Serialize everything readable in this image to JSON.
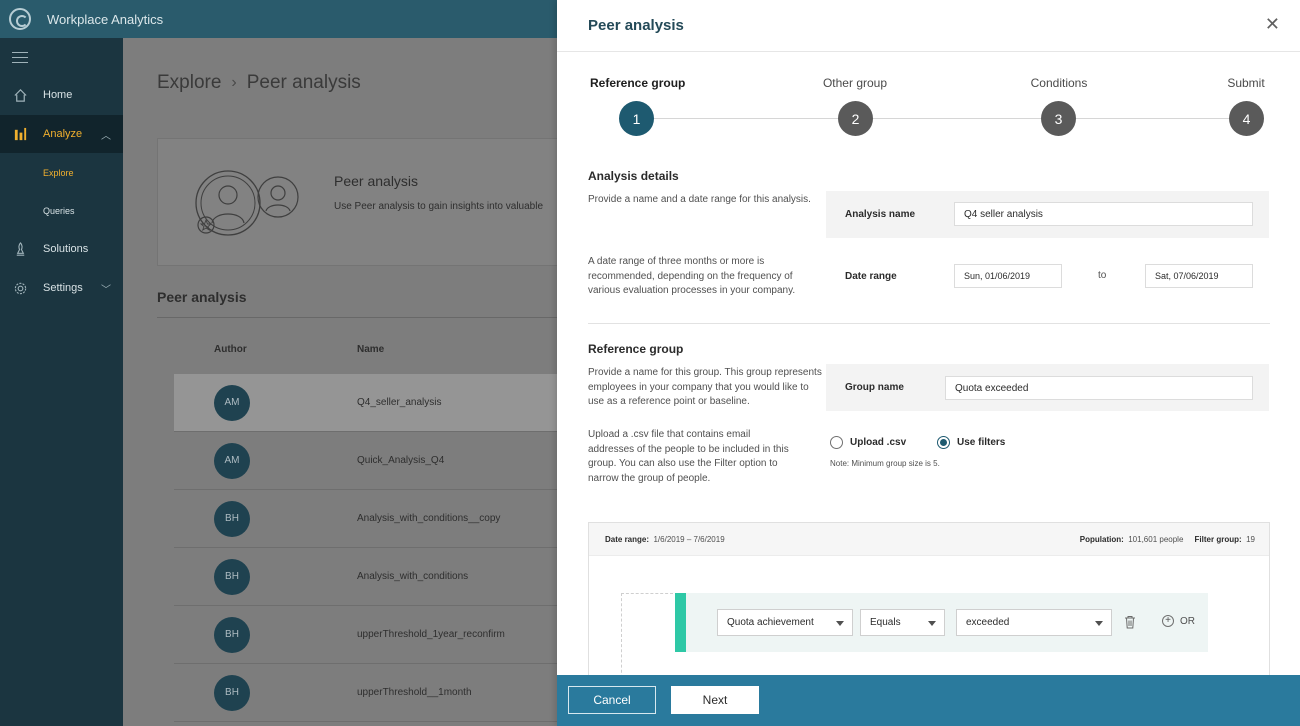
{
  "app": {
    "title": "Workplace Analytics"
  },
  "nav": {
    "items": [
      {
        "label": "Home",
        "icon": "home-icon"
      },
      {
        "label": "Analyze",
        "icon": "analyze-icon",
        "active": true
      },
      {
        "label": "Solutions",
        "icon": "solutions-icon"
      },
      {
        "label": "Settings",
        "icon": "gear-icon"
      }
    ],
    "sub_items": [
      {
        "label": "Explore",
        "active": true
      },
      {
        "label": "Queries"
      }
    ]
  },
  "main": {
    "breadcrumb": [
      "Explore",
      "Peer analysis"
    ],
    "promo": {
      "title": "Peer analysis",
      "description": "Use Peer analysis to gain insights into valuable"
    },
    "list_title": "Peer analysis",
    "columns": [
      "Author",
      "Name"
    ],
    "rows": [
      {
        "author": "AM",
        "name": "Q4_seller_analysis"
      },
      {
        "author": "AM",
        "name": "Quick_Analysis_Q4"
      },
      {
        "author": "BH",
        "name": "Analysis_with_conditions__copy"
      },
      {
        "author": "BH",
        "name": "Analysis_with_conditions"
      },
      {
        "author": "BH",
        "name": "upperThreshold_1year_reconfirm"
      },
      {
        "author": "BH",
        "name": "upperThreshold__1month"
      }
    ]
  },
  "panel": {
    "title": "Peer analysis",
    "steps": [
      {
        "label": "Reference group",
        "number": "1"
      },
      {
        "label": "Other group",
        "number": "2"
      },
      {
        "label": "Conditions",
        "number": "3"
      },
      {
        "label": "Submit",
        "number": "4"
      }
    ],
    "analysis_details": {
      "title": "Analysis details",
      "help_name": "Provide a name and a date range for this analysis.",
      "help_range": "A date range of three months or more is recommended, depending on the frequency of various evaluation processes in your company.",
      "name_label": "Analysis name",
      "name_value": "Q4 seller analysis",
      "range_label": "Date range",
      "range_from": "Sun, 01/06/2019",
      "range_to_word": "to",
      "range_to": "Sat, 07/06/2019"
    },
    "reference_group": {
      "title": "Reference group",
      "help_name": "Provide a name for this group. This group represents employees in your company that you would like to use as a reference point or baseline.",
      "help_upload": "Upload a .csv file that contains email addresses of the people to be included in this group. You can also use the Filter option to narrow the group of people.",
      "name_label": "Group name",
      "name_value": "Quota exceeded",
      "option_upload": "Upload .csv",
      "option_filters": "Use filters",
      "note": "Note: Minimum group size is 5."
    },
    "filter": {
      "date_range_label": "Date range:",
      "date_range_value": "1/6/2019 – 7/6/2019",
      "population_label": "Population:",
      "population_value": "101,601 people",
      "filter_group_label": "Filter group:",
      "filter_group_value": "19",
      "attribute": "Quota achievement",
      "operator": "Equals",
      "value": "exceeded",
      "or_label": "OR"
    },
    "footer": {
      "cancel": "Cancel",
      "next": "Next"
    }
  },
  "colors": {
    "header": "#2a5b6c",
    "nav": "#1b3540",
    "accent": "#f1b02e",
    "step_active": "#1e5a70",
    "footer": "#2a7a9d",
    "filter_bar": "#2ec8a6"
  }
}
